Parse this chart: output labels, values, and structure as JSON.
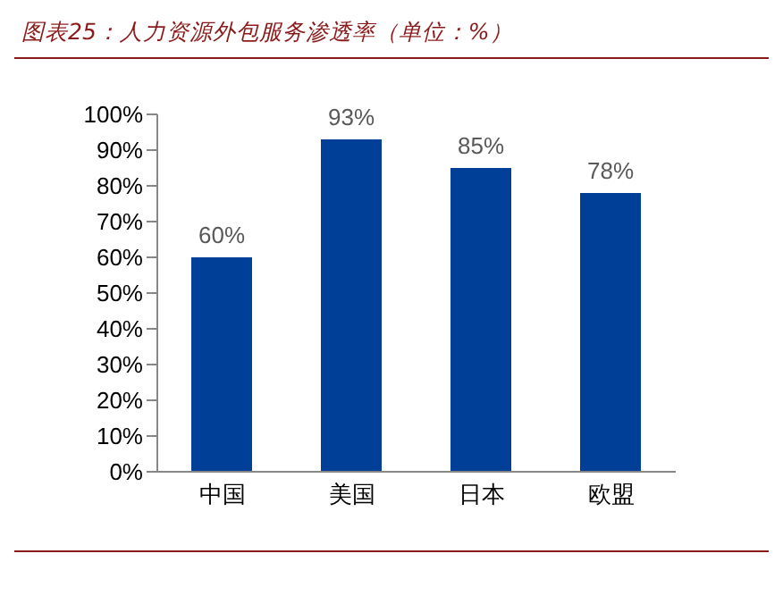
{
  "chart_data": {
    "type": "bar",
    "title": "图表25：人力资源外包服务渗透率（单位：%）",
    "categories": [
      "中国",
      "美国",
      "日本",
      "欧盟"
    ],
    "values": [
      60,
      93,
      85,
      78
    ],
    "value_labels": [
      "60%",
      "93%",
      "85%",
      "78%"
    ],
    "color": "#003f98",
    "ylim": [
      0,
      100
    ],
    "yticks": [
      {
        "value": 0,
        "label": "0%"
      },
      {
        "value": 10,
        "label": "10%"
      },
      {
        "value": 20,
        "label": "20%"
      },
      {
        "value": 30,
        "label": "30%"
      },
      {
        "value": 40,
        "label": "40%"
      },
      {
        "value": 50,
        "label": "50%"
      },
      {
        "value": 60,
        "label": "60%"
      },
      {
        "value": 70,
        "label": "70%"
      },
      {
        "value": 80,
        "label": "80%"
      },
      {
        "value": 90,
        "label": "90%"
      },
      {
        "value": 100,
        "label": "100%"
      }
    ],
    "grid": false,
    "legend": false
  }
}
